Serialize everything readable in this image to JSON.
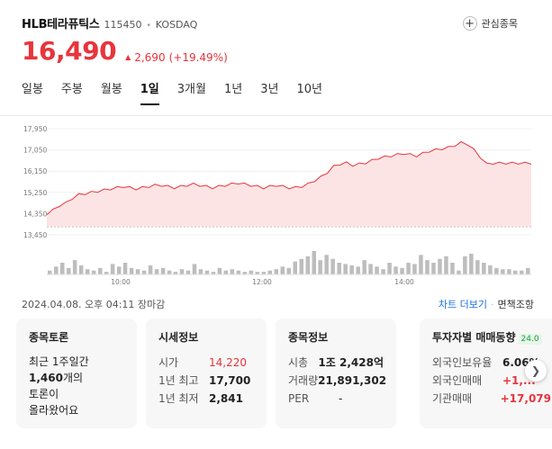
{
  "header": {
    "name": "HLB테라퓨틱스",
    "code": "115450",
    "market": "KOSDAQ",
    "watch_label": "관심종목"
  },
  "price": {
    "current": "16,490",
    "change": "2,690",
    "change_pct": "(+19.49%)"
  },
  "tabs": [
    {
      "label": "일봉"
    },
    {
      "label": "주봉"
    },
    {
      "label": "월봉"
    },
    {
      "label": "1일",
      "active": true
    },
    {
      "label": "3개월"
    },
    {
      "label": "1년"
    },
    {
      "label": "3년"
    },
    {
      "label": "10년"
    }
  ],
  "chart_data": {
    "type": "area",
    "y_tick_labels": [
      "17,950",
      "17,050",
      "16,150",
      "15,250",
      "14,350",
      "13,450"
    ],
    "x_tick_labels": [
      "10:00",
      "12:00",
      "14:00"
    ],
    "ylim": [
      13450,
      17950
    ],
    "baseline": 13800,
    "price_series": [
      14350,
      14500,
      14700,
      14800,
      15000,
      15150,
      15200,
      15250,
      15300,
      15350,
      15400,
      15450,
      15500,
      15450,
      15400,
      15450,
      15500,
      15550,
      15550,
      15500,
      15450,
      15500,
      15550,
      15600,
      15550,
      15500,
      15450,
      15500,
      15550,
      15600,
      15650,
      15600,
      15550,
      15500,
      15450,
      15500,
      15550,
      15500,
      15450,
      15450,
      15500,
      15600,
      15750,
      15900,
      16100,
      16350,
      16450,
      16500,
      16400,
      16450,
      16500,
      16600,
      16700,
      16750,
      16800,
      16850,
      16900,
      16850,
      16800,
      16900,
      17000,
      17050,
      17100,
      17150,
      17250,
      17350,
      17300,
      17050,
      16750,
      16450,
      16490,
      16490,
      16490,
      16490,
      16490,
      16490,
      16490
    ],
    "volume_series": [
      3,
      6,
      9,
      5,
      11,
      7,
      4,
      3,
      5,
      2,
      8,
      6,
      9,
      5,
      4,
      3,
      7,
      4,
      5,
      3,
      2,
      4,
      3,
      8,
      4,
      3,
      2,
      5,
      3,
      4,
      3,
      2,
      3,
      2,
      2,
      3,
      4,
      6,
      5,
      10,
      12,
      14,
      18,
      11,
      15,
      12,
      9,
      8,
      7,
      6,
      11,
      8,
      6,
      4,
      9,
      6,
      5,
      9,
      8,
      15,
      11,
      9,
      12,
      14,
      9,
      3,
      14,
      16,
      11,
      9,
      7,
      5,
      4,
      4,
      3,
      3,
      5
    ]
  },
  "status": {
    "datetime": "2024.04.08. 오후 04:11",
    "market_state": "장마감",
    "chart_more": "차트 더보기",
    "compare": "면책조항"
  },
  "cards": {
    "forum": {
      "title": "종목토론",
      "line1": "최근 1주일간",
      "count": "1,460",
      "line2_suffix": "개의",
      "line3": "토론이",
      "line4": "올라왔어요"
    },
    "quote": {
      "title": "시세정보",
      "rows": [
        {
          "k": "시가",
          "v": "14,220"
        },
        {
          "k": "1년 최고",
          "v": "17,700"
        },
        {
          "k": "1년 최저",
          "v": "2,841"
        }
      ]
    },
    "info": {
      "title": "종목정보",
      "rows": [
        {
          "k": "시총",
          "v": "1조 2,428억"
        },
        {
          "k": "거래량",
          "v": "21,891,302"
        },
        {
          "k": "PER",
          "v": "-"
        }
      ]
    },
    "investor": {
      "title": "투자자별 매매동향",
      "badge": "24.0",
      "rows": [
        {
          "k": "외국인보유율",
          "v": "6.06%"
        },
        {
          "k": "외국인매매",
          "v": "+1,..."
        },
        {
          "k": "기관매매",
          "v": "+17,079"
        }
      ]
    }
  },
  "colors": {
    "up": "#e8343c",
    "area_fill": "#fde4e4",
    "volume": "#bdbdbd",
    "link": "#1a6ee5"
  }
}
